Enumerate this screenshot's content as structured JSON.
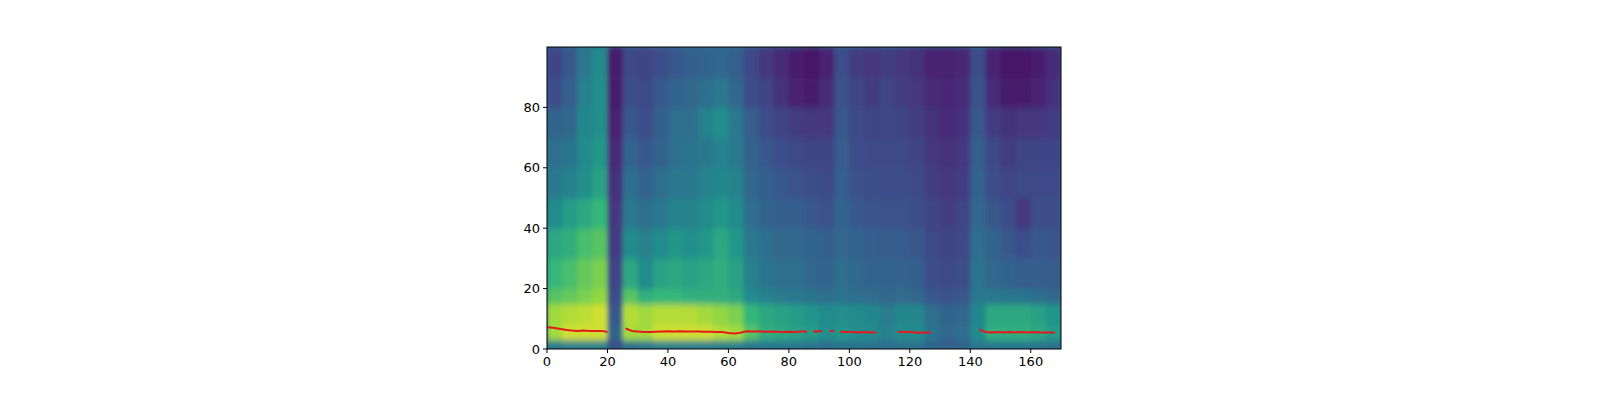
{
  "chart_data": {
    "type": "heatmap",
    "xlim": [
      0,
      170
    ],
    "ylim": [
      0,
      100
    ],
    "xticks": [
      0,
      20,
      40,
      60,
      80,
      100,
      120,
      140,
      160
    ],
    "yticks": [
      0,
      20,
      40,
      60,
      80
    ],
    "clim": [
      0,
      1
    ],
    "x_edges": [
      0,
      5,
      10,
      15,
      20,
      25,
      30,
      35,
      40,
      45,
      50,
      55,
      60,
      65,
      70,
      75,
      80,
      85,
      90,
      95,
      100,
      105,
      110,
      115,
      120,
      125,
      130,
      135,
      140,
      145,
      150,
      155,
      160,
      165,
      170
    ],
    "y_edges": [
      0,
      3,
      8,
      15,
      20,
      30,
      40,
      50,
      60,
      70,
      80,
      90,
      100
    ],
    "cells": [
      [
        0.5,
        0.9,
        0.9,
        0.8,
        0.75,
        0.7,
        0.6,
        0.5,
        0.45,
        0.4,
        0.3,
        0.25
      ],
      [
        0.55,
        0.95,
        0.92,
        0.82,
        0.78,
        0.72,
        0.66,
        0.55,
        0.48,
        0.42,
        0.38,
        0.35
      ],
      [
        0.55,
        0.95,
        0.93,
        0.85,
        0.82,
        0.78,
        0.7,
        0.62,
        0.6,
        0.58,
        0.55,
        0.5
      ],
      [
        0.55,
        0.95,
        0.95,
        0.88,
        0.85,
        0.8,
        0.75,
        0.68,
        0.65,
        0.62,
        0.62,
        0.6
      ],
      [
        0.3,
        0.4,
        0.35,
        0.3,
        0.25,
        0.22,
        0.2,
        0.18,
        0.15,
        0.12,
        0.1,
        0.1
      ],
      [
        0.45,
        0.9,
        0.92,
        0.8,
        0.7,
        0.6,
        0.5,
        0.45,
        0.4,
        0.35,
        0.3,
        0.28
      ],
      [
        0.5,
        0.9,
        0.9,
        0.72,
        0.6,
        0.55,
        0.45,
        0.4,
        0.35,
        0.3,
        0.28,
        0.25
      ],
      [
        0.55,
        0.95,
        0.92,
        0.75,
        0.68,
        0.6,
        0.5,
        0.45,
        0.4,
        0.38,
        0.35,
        0.3
      ],
      [
        0.55,
        0.95,
        0.92,
        0.75,
        0.7,
        0.65,
        0.55,
        0.5,
        0.45,
        0.45,
        0.4,
        0.35
      ],
      [
        0.55,
        0.95,
        0.92,
        0.72,
        0.68,
        0.62,
        0.55,
        0.5,
        0.48,
        0.45,
        0.42,
        0.38
      ],
      [
        0.55,
        0.95,
        0.9,
        0.72,
        0.7,
        0.65,
        0.6,
        0.55,
        0.5,
        0.55,
        0.45,
        0.4
      ],
      [
        0.55,
        0.92,
        0.88,
        0.72,
        0.72,
        0.7,
        0.65,
        0.58,
        0.55,
        0.62,
        0.5,
        0.42
      ],
      [
        0.55,
        0.9,
        0.85,
        0.7,
        0.68,
        0.65,
        0.6,
        0.55,
        0.5,
        0.5,
        0.42,
        0.38
      ],
      [
        0.5,
        0.8,
        0.75,
        0.6,
        0.55,
        0.5,
        0.45,
        0.42,
        0.4,
        0.38,
        0.3,
        0.28
      ],
      [
        0.5,
        0.72,
        0.7,
        0.55,
        0.48,
        0.45,
        0.4,
        0.38,
        0.35,
        0.3,
        0.25,
        0.2
      ],
      [
        0.5,
        0.7,
        0.68,
        0.52,
        0.45,
        0.42,
        0.38,
        0.35,
        0.3,
        0.25,
        0.18,
        0.15
      ],
      [
        0.5,
        0.68,
        0.66,
        0.5,
        0.45,
        0.42,
        0.38,
        0.32,
        0.28,
        0.22,
        0.12,
        0.1
      ],
      [
        0.48,
        0.66,
        0.64,
        0.48,
        0.42,
        0.4,
        0.35,
        0.3,
        0.25,
        0.2,
        0.1,
        0.08
      ],
      [
        0.45,
        0.62,
        0.6,
        0.45,
        0.4,
        0.38,
        0.32,
        0.28,
        0.25,
        0.2,
        0.15,
        0.12
      ],
      [
        0.48,
        0.65,
        0.62,
        0.48,
        0.45,
        0.42,
        0.4,
        0.38,
        0.36,
        0.35,
        0.32,
        0.3
      ],
      [
        0.48,
        0.62,
        0.6,
        0.45,
        0.42,
        0.4,
        0.35,
        0.32,
        0.3,
        0.28,
        0.25,
        0.22
      ],
      [
        0.47,
        0.6,
        0.58,
        0.44,
        0.4,
        0.38,
        0.33,
        0.3,
        0.28,
        0.25,
        0.22,
        0.2
      ],
      [
        0.45,
        0.55,
        0.52,
        0.42,
        0.4,
        0.36,
        0.32,
        0.3,
        0.28,
        0.26,
        0.25,
        0.22
      ],
      [
        0.47,
        0.6,
        0.58,
        0.44,
        0.4,
        0.36,
        0.32,
        0.3,
        0.28,
        0.25,
        0.22,
        0.2
      ],
      [
        0.47,
        0.6,
        0.57,
        0.42,
        0.38,
        0.35,
        0.3,
        0.28,
        0.25,
        0.22,
        0.2,
        0.18
      ],
      [
        0.4,
        0.48,
        0.45,
        0.35,
        0.3,
        0.28,
        0.25,
        0.22,
        0.2,
        0.18,
        0.15,
        0.12
      ],
      [
        0.38,
        0.42,
        0.4,
        0.32,
        0.28,
        0.25,
        0.22,
        0.2,
        0.18,
        0.16,
        0.14,
        0.12
      ],
      [
        0.4,
        0.45,
        0.42,
        0.35,
        0.3,
        0.28,
        0.25,
        0.22,
        0.2,
        0.18,
        0.16,
        0.14
      ],
      [
        0.5,
        0.6,
        0.58,
        0.5,
        0.48,
        0.45,
        0.42,
        0.4,
        0.38,
        0.35,
        0.32,
        0.3
      ],
      [
        0.5,
        0.72,
        0.7,
        0.5,
        0.42,
        0.4,
        0.35,
        0.3,
        0.28,
        0.22,
        0.15,
        0.12
      ],
      [
        0.5,
        0.72,
        0.7,
        0.48,
        0.4,
        0.35,
        0.3,
        0.25,
        0.22,
        0.18,
        0.1,
        0.08
      ],
      [
        0.5,
        0.72,
        0.7,
        0.48,
        0.38,
        0.3,
        0.2,
        0.28,
        0.25,
        0.2,
        0.1,
        0.08
      ],
      [
        0.48,
        0.7,
        0.68,
        0.45,
        0.38,
        0.35,
        0.3,
        0.28,
        0.25,
        0.2,
        0.12,
        0.1
      ],
      [
        0.45,
        0.66,
        0.64,
        0.42,
        0.36,
        0.33,
        0.3,
        0.28,
        0.25,
        0.22,
        0.18,
        0.15
      ]
    ],
    "series": [
      {
        "type": "line",
        "color": "#e41a1c",
        "x": [
          0,
          2,
          4,
          6,
          8,
          10,
          12,
          14,
          16,
          18,
          20,
          22,
          26,
          28,
          30,
          32,
          34,
          36,
          38,
          40,
          42,
          44,
          46,
          48,
          50,
          52,
          54,
          56,
          58,
          60,
          62,
          64,
          66,
          68,
          70,
          72,
          74,
          76,
          78,
          80,
          82,
          84,
          86,
          87,
          88,
          91,
          92,
          93.5,
          95,
          96,
          97,
          99,
          101,
          103,
          105,
          107,
          109,
          112,
          116,
          118,
          120,
          122,
          124,
          126,
          127,
          135,
          143,
          145,
          147,
          149,
          151,
          153,
          155,
          157,
          159,
          161,
          163,
          165,
          167,
          168
        ],
        "values": [
          7.2,
          7.0,
          6.7,
          6.4,
          6.1,
          6.0,
          6.1,
          6.0,
          6.0,
          6.0,
          5.6,
          null,
          6.8,
          6.0,
          5.8,
          5.6,
          5.6,
          5.7,
          5.8,
          5.9,
          5.8,
          5.9,
          5.8,
          5.8,
          5.8,
          5.7,
          5.7,
          5.6,
          5.6,
          5.3,
          5.1,
          5.4,
          5.9,
          5.8,
          5.9,
          5.7,
          5.8,
          5.7,
          5.6,
          5.7,
          5.6,
          5.8,
          5.8,
          null,
          5.8,
          5.9,
          null,
          5.9,
          6.0,
          null,
          5.7,
          5.6,
          5.6,
          5.5,
          5.6,
          5.5,
          5.5,
          null,
          5.7,
          5.6,
          5.6,
          5.5,
          5.4,
          5.5,
          5.5,
          null,
          6.5,
          5.6,
          5.5,
          5.6,
          5.5,
          5.6,
          5.5,
          5.6,
          5.5,
          5.6,
          5.5,
          5.5,
          5.5,
          5.5
        ]
      }
    ]
  }
}
